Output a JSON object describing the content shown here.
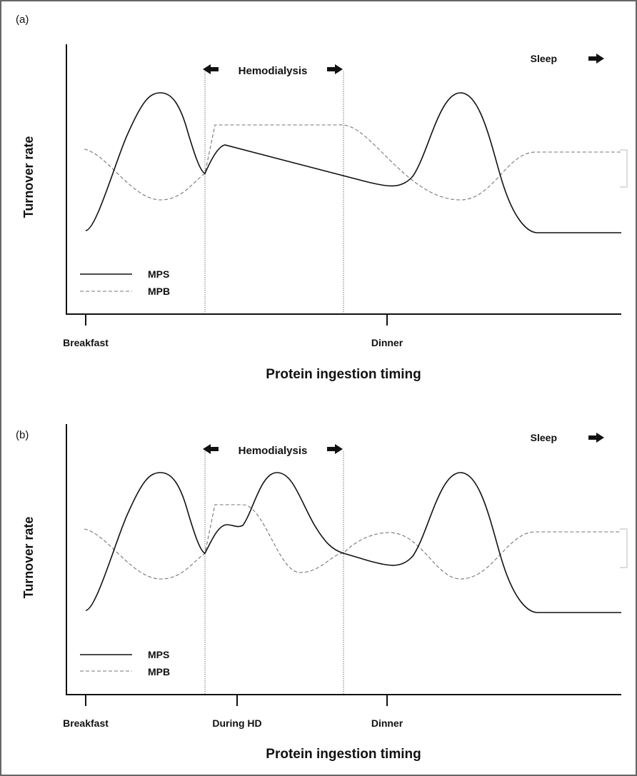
{
  "panels": [
    {
      "label": "(a)",
      "y_label": "Turnover rate",
      "x_label": "Protein ingestion timing",
      "hd_label": "Hemodialysis",
      "sleep_label": "Sleep",
      "ticks": [
        "Breakfast",
        "Dinner"
      ],
      "legend": {
        "mps": "MPS",
        "mpb": "MPB"
      }
    },
    {
      "label": "(b)",
      "y_label": "Turnover rate",
      "x_label": "Protein ingestion timing",
      "hd_label": "Hemodialysis",
      "sleep_label": "Sleep",
      "ticks": [
        "Breakfast",
        "During HD",
        "Dinner"
      ],
      "legend": {
        "mps": "MPS",
        "mpb": "MPB"
      }
    }
  ],
  "colors": {
    "mps": "#111111",
    "mpb": "#777777",
    "border": "#333333"
  }
}
